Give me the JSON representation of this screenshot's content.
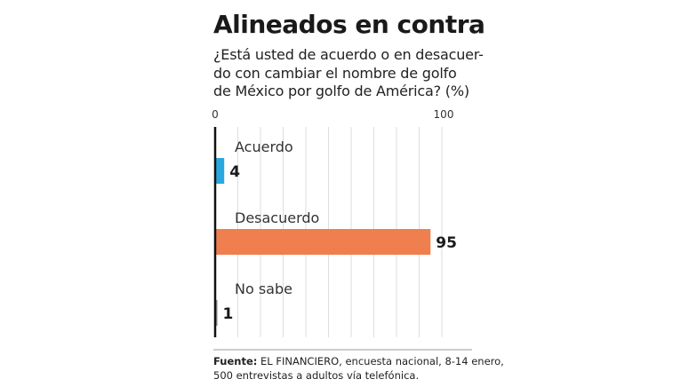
{
  "header": {
    "title": "Alineados en contra",
    "subtitle_lines": [
      "¿Está usted de acuerdo o en desacuer-",
      "do con cambiar el nombre de golfo",
      "de México por golfo de América? (%)"
    ]
  },
  "chart_data": {
    "type": "bar",
    "orientation": "horizontal",
    "title": "Alineados en contra",
    "subtitle": "¿Está usted de acuerdo o en desacuerdo con cambiar el nombre de golfo de México por golfo de América? (%)",
    "categories": [
      "Acuerdo",
      "Desacuerdo",
      "No sabe"
    ],
    "values": [
      4,
      95,
      1
    ],
    "value_labels": [
      "4",
      "95",
      "1"
    ],
    "xlim": [
      0,
      100
    ],
    "x_ticks": [
      "0",
      "100"
    ],
    "grid": true,
    "colors": [
      "#29a8e0",
      "#ef7f4f",
      "#8c8c8c"
    ],
    "gridline_color": "#dddddd",
    "axis_color": "#111111"
  },
  "footer": {
    "source_label": "Fuente:",
    "source_text_line1": " EL FINANCIERO, encuesta nacional, 8-14 enero,",
    "source_text_line2": "500 entrevistas a adultos vía telefónica."
  }
}
